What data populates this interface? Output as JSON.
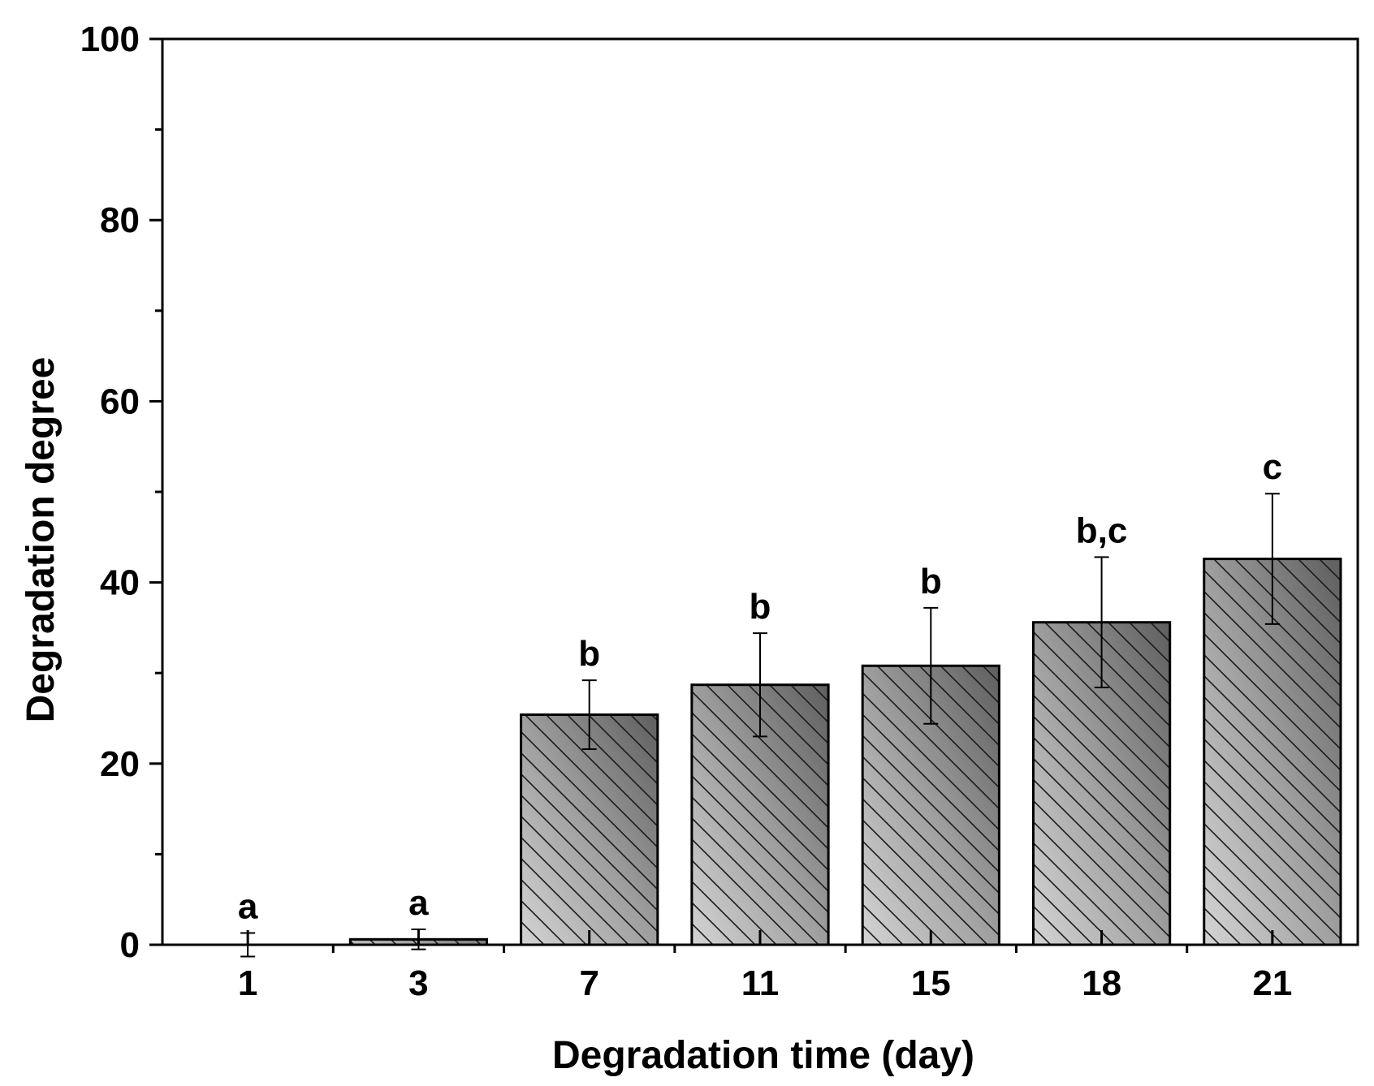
{
  "chart_data": {
    "type": "bar",
    "title": "",
    "xlabel": "Degradation time (day)",
    "ylabel": "Degradation degree",
    "ylim": [
      0,
      100
    ],
    "yticks": [
      0,
      20,
      40,
      60,
      80,
      100
    ],
    "y_minor_step": 10,
    "grid": false,
    "categories": [
      "1",
      "3",
      "7",
      "11",
      "15",
      "18",
      "21"
    ],
    "values": [
      0,
      0.6,
      25.4,
      28.7,
      30.8,
      35.6,
      42.6
    ],
    "errors": [
      1.3,
      1.1,
      3.8,
      5.7,
      6.4,
      7.2,
      7.2
    ],
    "significance": [
      "a",
      "a",
      "b",
      "b",
      "b",
      "b,c",
      "c"
    ],
    "colors": {
      "bar_light": "#d4d4d4",
      "bar_mid": "#9e9e9e",
      "bar_dark": "#5e5e5e",
      "hatch": "#1a1a1a",
      "axis": "#000000"
    }
  }
}
